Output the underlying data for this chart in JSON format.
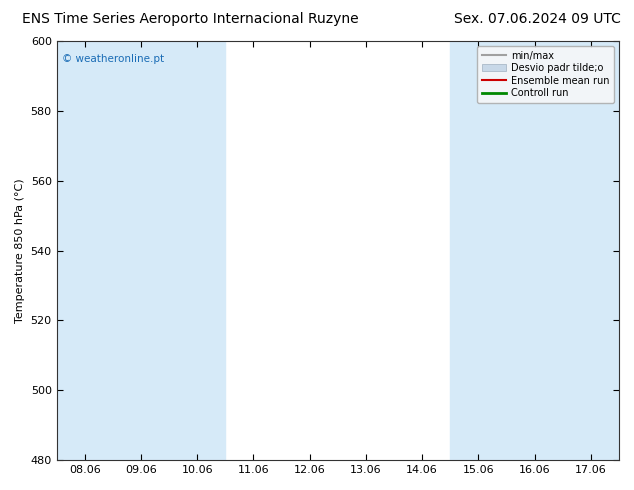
{
  "title": "ENS Time Series Aeroporto Internacional Ruzyne",
  "title_right": "Sex. 07.06.2024 09 UTC",
  "ylabel": "Temperature 850 hPa (°C)",
  "watermark": "© weatheronline.pt",
  "ylim": [
    480,
    600
  ],
  "yticks": [
    480,
    500,
    520,
    540,
    560,
    580,
    600
  ],
  "xtick_labels": [
    "08.06",
    "09.06",
    "10.06",
    "11.06",
    "12.06",
    "13.06",
    "14.06",
    "15.06",
    "16.06",
    "17.06"
  ],
  "shaded_columns": [
    0,
    1,
    2,
    7,
    8,
    9
  ],
  "shaded_color": "#d6eaf8",
  "legend_entries": [
    {
      "label": "min/max",
      "color": "#a0a0a0",
      "lw": 1.5,
      "style": "-",
      "type": "line"
    },
    {
      "label": "Desvio padr tilde;o",
      "color": "#c8d8e8",
      "lw": 6,
      "style": "-",
      "type": "patch"
    },
    {
      "label": "Ensemble mean run",
      "color": "#cc0000",
      "lw": 1.5,
      "style": "-",
      "type": "line"
    },
    {
      "label": "Controll run",
      "color": "#008800",
      "lw": 2,
      "style": "-",
      "type": "line"
    }
  ],
  "background_color": "#ffffff",
  "plot_bg_color": "#ffffff",
  "title_fontsize": 10,
  "tick_fontsize": 8,
  "ylabel_fontsize": 8
}
